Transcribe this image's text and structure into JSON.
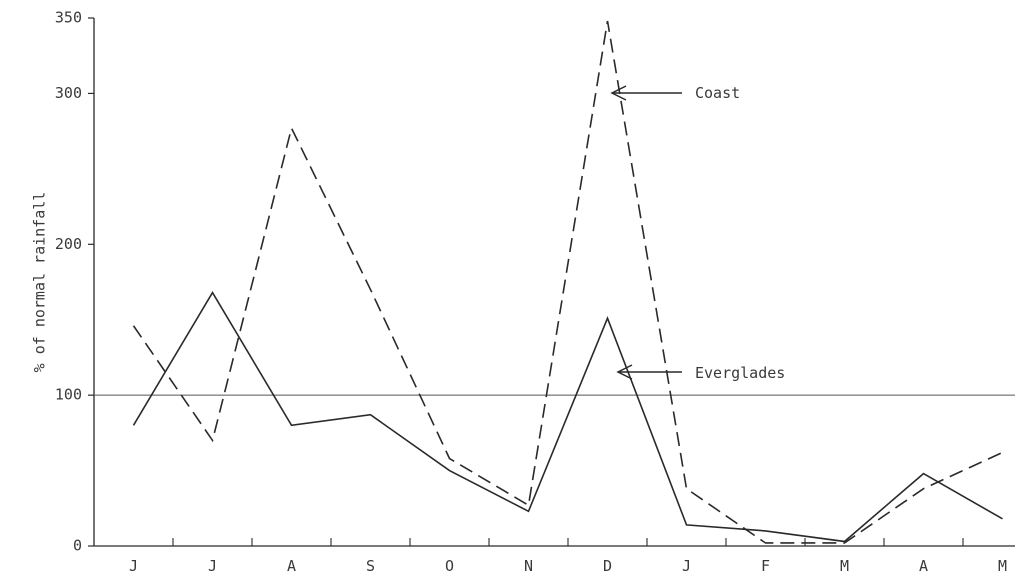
{
  "chart_data": {
    "type": "line",
    "title": "",
    "xlabel": "",
    "ylabel": "% of normal rainfall",
    "categories": [
      "J",
      "J",
      "A",
      "S",
      "O",
      "N",
      "D",
      "J",
      "F",
      "M",
      "A",
      "M"
    ],
    "ylim": [
      0,
      350
    ],
    "yticks": [
      0,
      100,
      200,
      300,
      350
    ],
    "reference_line": 100,
    "grid": false,
    "series": [
      {
        "name": "Everglades",
        "style": "solid",
        "values": [
          80,
          168,
          80,
          87,
          50,
          23,
          151,
          14,
          10,
          3,
          48,
          18
        ]
      },
      {
        "name": "Coast",
        "style": "dashed",
        "values": [
          146,
          70,
          277,
          170,
          58,
          27,
          348,
          38,
          2,
          2,
          38,
          62
        ]
      }
    ],
    "annotations": [
      {
        "text": "Coast",
        "points_to_series": "Coast"
      },
      {
        "text": "Everglades",
        "points_to_series": "Everglades"
      }
    ],
    "colors": {
      "line": "#2a2a2a",
      "text": "#3a3a3a"
    }
  }
}
